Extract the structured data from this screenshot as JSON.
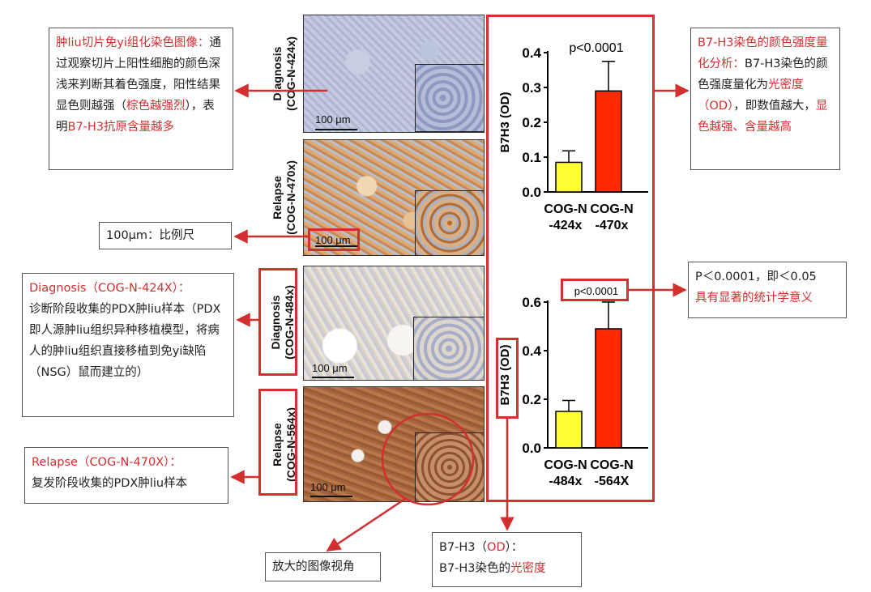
{
  "notes": {
    "ihc": {
      "title": "肿liu切片免yi组化染色图像：",
      "text1": "通过观察切片上阳性细胞的颜色深浅来判断其着色强度，阳性结果显色则越强（",
      "red1": "棕色越强烈",
      "text2": "），表明",
      "red2": "B7-H3抗原含量越多"
    },
    "scale": {
      "text": "100μm：比例尺"
    },
    "diagnosis": {
      "title": "Diagnosis（COG-N-424X）：",
      "text": "诊断阶段收集的PDX肿liu样本（PDX即人源肿liu组织异种移植模型，将病人的肿liu组织直接移植到免yi缺陷（NSG）鼠而建立的）"
    },
    "relapse": {
      "title": "Relapse（COG-N-470X）：",
      "text": "复发阶段收集的PDX肿liu样本"
    },
    "zoom": {
      "text": "放大的图像视角"
    },
    "od": {
      "line1a": "B7-H3（",
      "line1red": "OD",
      "line1b": "）：",
      "line2a": "B7-H3染色的",
      "line2red": "光密度"
    },
    "quant": {
      "title": "B7-H3染色的颜色强度量化分析：",
      "text1": "B7-H3染色的颜色强度量化为",
      "red1": "光密度（OD）",
      "text2": "，即数值越大，",
      "red2": "显色越强、含量越高"
    },
    "pvalue": {
      "line1": "P＜0.0001，即＜0.05",
      "line2red": "具有显著的统计学意义"
    }
  },
  "tiles": [
    {
      "label1": "Diagnosis",
      "label2": "(COG-N-424x)",
      "scale": "100 μm",
      "stain": "light-blue"
    },
    {
      "label1": "Relapse",
      "label2": "(COG-N-470x)",
      "scale": "100 μm",
      "stain": "brown"
    },
    {
      "label1": "Diagnosis",
      "label2": "(COG-N-484x)",
      "scale": "100 μm",
      "stain": "light-pale"
    },
    {
      "label1": "Relapse",
      "label2": "(COG-N-564x)",
      "scale": "100 μm",
      "stain": "dark-brown"
    }
  ],
  "colors": {
    "accent": "#d32f2f",
    "bar_diagnosis": "#ffff33",
    "bar_relapse": "#ff2a00"
  },
  "chart_data": [
    {
      "type": "bar",
      "categories": [
        "COG-N\n-424x",
        "COG-N\n-470x"
      ],
      "values": [
        0.085,
        0.29
      ],
      "errors": [
        0.033,
        0.085
      ],
      "ylabel": "B7H3 (OD)",
      "ylim": [
        0,
        0.4
      ],
      "yticks": [
        "0.0",
        "0.1",
        "0.2",
        "0.3",
        "0.4"
      ],
      "annotation": "p<0.0001",
      "colors": [
        "#ffff33",
        "#ff2a00"
      ]
    },
    {
      "type": "bar",
      "categories": [
        "COG-N\n-484x",
        "COG-N\n-564X"
      ],
      "values": [
        0.15,
        0.49
      ],
      "errors": [
        0.045,
        0.11
      ],
      "ylabel": "B7H3 (OD)",
      "ylim": [
        0,
        0.6
      ],
      "yticks": [
        "0.0",
        "0.2",
        "0.4",
        "0.6"
      ],
      "annotation": "p<0.0001",
      "colors": [
        "#ffff33",
        "#ff2a00"
      ]
    }
  ]
}
